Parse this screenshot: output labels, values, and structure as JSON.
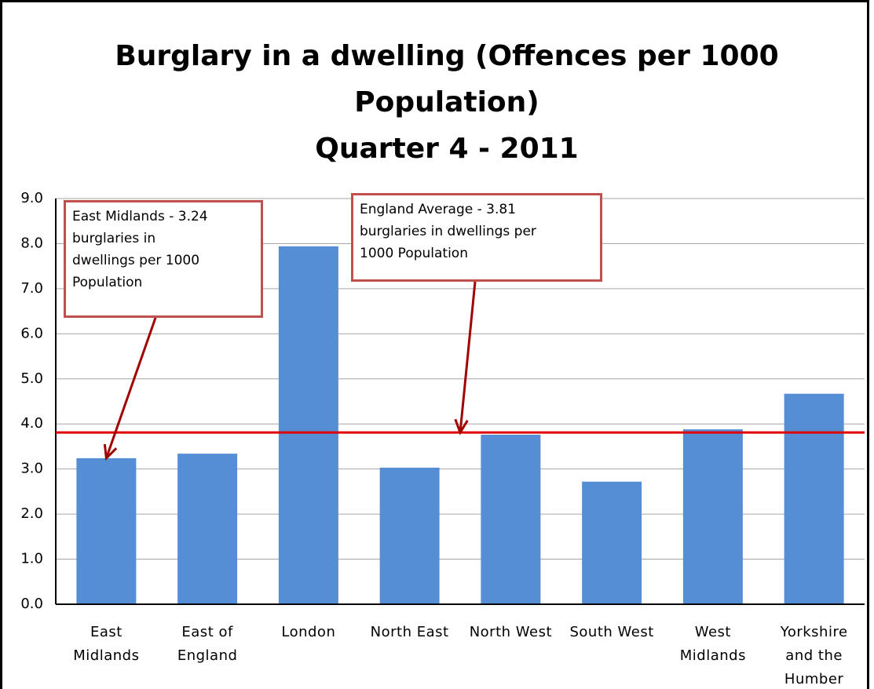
{
  "chart_data": {
    "type": "bar",
    "title": [
      "Burglary in a dwelling (Offences per 1000",
      "Population)",
      "Quarter 4 - 2011"
    ],
    "categories": [
      "East Midlands",
      "East of England",
      "London",
      "North East",
      "North West",
      "South West",
      "West Midlands",
      "Yorkshire and the Humber"
    ],
    "values": [
      3.24,
      3.34,
      7.94,
      3.03,
      3.76,
      2.72,
      3.88,
      4.67
    ],
    "color": "#558ed5",
    "ylim": [
      0,
      9
    ],
    "yticks": [
      {
        "value": 0,
        "label": "0.0"
      },
      {
        "value": 1,
        "label": "1.0"
      },
      {
        "value": 2,
        "label": "2.0"
      },
      {
        "value": 3,
        "label": "3.0"
      },
      {
        "value": 4,
        "label": "4.0"
      },
      {
        "value": 5,
        "label": "5.0"
      },
      {
        "value": 6,
        "label": "6.0"
      },
      {
        "value": 7,
        "label": "7.0"
      },
      {
        "value": 8,
        "label": "8.0"
      },
      {
        "value": 9,
        "label": "9.0"
      }
    ],
    "grid": true,
    "reference_line": {
      "value": 3.81,
      "color": "#e00000"
    },
    "annotations": [
      {
        "lines": [
          "East Midlands - 3.24",
          "burglaries in",
          "dwellings per 1000",
          "Population"
        ],
        "target": 0,
        "value": 3.24
      },
      {
        "lines": [
          "England Average - 3.81",
          "burglaries  in dwellings per",
          "1000 Population"
        ],
        "target": 3.5,
        "value": 3.81
      }
    ]
  }
}
